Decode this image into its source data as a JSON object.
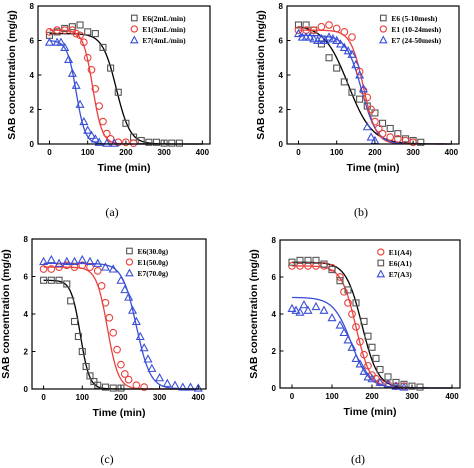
{
  "chart_data": [
    {
      "type": "scatter",
      "panel_label": "(a)",
      "xlabel": "Time  (min)",
      "ylabel": "SAB concentration  (mg/g)",
      "xlim": [
        -30,
        420
      ],
      "ylim": [
        0,
        8
      ],
      "xticks": [
        0,
        100,
        200,
        300,
        400
      ],
      "yticks": [
        0,
        2,
        4,
        6,
        8
      ],
      "legend_position": "top-right",
      "series": [
        {
          "name": "E6(2mL/min)",
          "marker": "square",
          "color": "#555555",
          "points": [
            [
              0,
              6.3
            ],
            [
              20,
              6.5
            ],
            [
              40,
              6.7
            ],
            [
              60,
              6.8
            ],
            [
              80,
              6.9
            ],
            [
              100,
              6.5
            ],
            [
              120,
              6.4
            ],
            [
              140,
              5.6
            ],
            [
              160,
              4.4
            ],
            [
              180,
              3.0
            ],
            [
              200,
              1.2
            ],
            [
              220,
              0.4
            ],
            [
              240,
              0.2
            ],
            [
              260,
              0.1
            ],
            [
              280,
              0.1
            ],
            [
              300,
              0.05
            ],
            [
              320,
              0.05
            ],
            [
              340,
              0.05
            ]
          ],
          "fit": {
            "c0": 6.4,
            "t50": 175,
            "k": 0.055
          }
        },
        {
          "name": "E1(3mL/min)",
          "marker": "circle",
          "color": "#e8413c",
          "points": [
            [
              0,
              6.5
            ],
            [
              20,
              6.6
            ],
            [
              40,
              6.6
            ],
            [
              60,
              6.6
            ],
            [
              70,
              6.4
            ],
            [
              80,
              6.3
            ],
            [
              90,
              5.9
            ],
            [
              100,
              5.0
            ],
            [
              110,
              4.3
            ],
            [
              120,
              3.2
            ],
            [
              130,
              2.2
            ],
            [
              140,
              1.3
            ],
            [
              150,
              0.6
            ],
            [
              160,
              0.3
            ],
            [
              180,
              0.1
            ],
            [
              200,
              0.1
            ],
            [
              220,
              0.05
            ]
          ],
          "fit": {
            "c0": 6.6,
            "t50": 113,
            "k": 0.08
          }
        },
        {
          "name": "E7(4mL/min)",
          "marker": "triangle",
          "color": "#3a4fd8",
          "points": [
            [
              0,
              5.9
            ],
            [
              20,
              5.9
            ],
            [
              30,
              5.9
            ],
            [
              40,
              5.6
            ],
            [
              50,
              4.9
            ],
            [
              60,
              4.1
            ],
            [
              70,
              3.4
            ],
            [
              80,
              2.3
            ],
            [
              90,
              1.3
            ],
            [
              100,
              0.8
            ],
            [
              110,
              0.5
            ],
            [
              120,
              0.3
            ],
            [
              130,
              0.1
            ],
            [
              150,
              0.05
            ],
            [
              170,
              0.05
            ]
          ],
          "fit": {
            "c0": 6.0,
            "t50": 70,
            "k": 0.085
          }
        }
      ]
    },
    {
      "type": "scatter",
      "panel_label": "(b)",
      "xlabel": "Time  (min)",
      "ylabel": "SAB concentration  (mg/g)",
      "xlim": [
        -30,
        420
      ],
      "ylim": [
        0,
        8
      ],
      "xticks": [
        0,
        100,
        200,
        300,
        400
      ],
      "yticks": [
        0,
        2,
        4,
        6,
        8
      ],
      "legend_position": "top-right",
      "series": [
        {
          "name": "E6  (5-10mesh)",
          "marker": "square",
          "color": "#555555",
          "points": [
            [
              0,
              6.9
            ],
            [
              20,
              6.9
            ],
            [
              40,
              6.6
            ],
            [
              60,
              5.8
            ],
            [
              80,
              5.0
            ],
            [
              100,
              4.4
            ],
            [
              120,
              3.6
            ],
            [
              140,
              3.0
            ],
            [
              160,
              2.6
            ],
            [
              180,
              2.2
            ],
            [
              200,
              1.8
            ],
            [
              220,
              1.2
            ],
            [
              240,
              0.9
            ],
            [
              260,
              0.6
            ],
            [
              280,
              0.3
            ],
            [
              300,
              0.2
            ],
            [
              320,
              0.1
            ]
          ],
          "fit": {
            "c0": 6.9,
            "t50": 130,
            "k": 0.032
          }
        },
        {
          "name": "E1  (10-24mesh)",
          "marker": "circle",
          "color": "#e8413c",
          "points": [
            [
              0,
              6.6
            ],
            [
              20,
              6.6
            ],
            [
              40,
              6.6
            ],
            [
              60,
              6.8
            ],
            [
              80,
              6.9
            ],
            [
              100,
              6.7
            ],
            [
              120,
              6.5
            ],
            [
              140,
              6.2
            ],
            [
              160,
              4.2
            ],
            [
              170,
              3.1
            ],
            [
              180,
              2.7
            ],
            [
              190,
              2.0
            ],
            [
              200,
              1.3
            ],
            [
              210,
              0.9
            ],
            [
              220,
              0.6
            ],
            [
              240,
              0.4
            ],
            [
              260,
              0.3
            ],
            [
              280,
              0.2
            ],
            [
              300,
              0.1
            ]
          ],
          "fit": {
            "c0": 6.6,
            "t50": 170,
            "k": 0.06
          }
        },
        {
          "name": "E7  (24-50mesh)",
          "marker": "triangle",
          "color": "#3a4fd8",
          "points": [
            [
              0,
              6.4
            ],
            [
              10,
              6.2
            ],
            [
              20,
              6.2
            ],
            [
              30,
              6.2
            ],
            [
              40,
              6.1
            ],
            [
              50,
              6.0
            ],
            [
              60,
              6.1
            ],
            [
              70,
              6.0
            ],
            [
              80,
              6.2
            ],
            [
              90,
              6.1
            ],
            [
              100,
              6.0
            ],
            [
              110,
              5.8
            ],
            [
              120,
              5.6
            ],
            [
              130,
              5.4
            ],
            [
              140,
              5.2
            ],
            [
              150,
              4.6
            ],
            [
              160,
              4.0
            ],
            [
              170,
              3.2
            ],
            [
              180,
              1.0
            ],
            [
              190,
              0.4
            ],
            [
              200,
              0.2
            ]
          ],
          "fit": {
            "c0": 6.3,
            "t50": 165,
            "k": 0.05
          }
        }
      ]
    },
    {
      "type": "scatter",
      "panel_label": "(c)",
      "xlabel": "Time  (min)",
      "ylabel": "SAB concentration  (mg/g)",
      "xlim": [
        -30,
        420
      ],
      "ylim": [
        0,
        8
      ],
      "xticks": [
        0,
        100,
        200,
        300,
        400
      ],
      "yticks": [
        0,
        2,
        4,
        6,
        8
      ],
      "legend_position": "top-right",
      "series": [
        {
          "name": "E6(30.0g)",
          "marker": "square",
          "color": "#555555",
          "points": [
            [
              0,
              5.8
            ],
            [
              20,
              5.8
            ],
            [
              40,
              5.8
            ],
            [
              60,
              5.6
            ],
            [
              70,
              4.7
            ],
            [
              80,
              3.6
            ],
            [
              90,
              2.8
            ],
            [
              100,
              2.0
            ],
            [
              110,
              1.2
            ],
            [
              120,
              0.7
            ],
            [
              130,
              0.4
            ],
            [
              140,
              0.2
            ],
            [
              160,
              0.1
            ],
            [
              180,
              0.05
            ],
            [
              200,
              0.05
            ]
          ],
          "fit": {
            "c0": 5.8,
            "t50": 95,
            "k": 0.085
          }
        },
        {
          "name": "E1(50.0g)",
          "marker": "circle",
          "color": "#e8413c",
          "points": [
            [
              0,
              6.4
            ],
            [
              20,
              6.4
            ],
            [
              40,
              6.5
            ],
            [
              60,
              6.6
            ],
            [
              80,
              6.5
            ],
            [
              100,
              6.6
            ],
            [
              120,
              6.5
            ],
            [
              140,
              6.3
            ],
            [
              150,
              5.5
            ],
            [
              160,
              4.6
            ],
            [
              170,
              3.8
            ],
            [
              180,
              3.0
            ],
            [
              190,
              2.1
            ],
            [
              200,
              1.3
            ],
            [
              210,
              0.8
            ],
            [
              220,
              0.5
            ],
            [
              240,
              0.2
            ],
            [
              260,
              0.1
            ]
          ],
          "fit": {
            "c0": 6.5,
            "t50": 165,
            "k": 0.07
          }
        },
        {
          "name": "E7(70.0g)",
          "marker": "triangle",
          "color": "#3a4fd8",
          "points": [
            [
              0,
              6.8
            ],
            [
              20,
              6.9
            ],
            [
              40,
              6.7
            ],
            [
              60,
              6.8
            ],
            [
              80,
              6.8
            ],
            [
              100,
              6.9
            ],
            [
              120,
              6.8
            ],
            [
              140,
              6.7
            ],
            [
              160,
              6.5
            ],
            [
              180,
              6.4
            ],
            [
              200,
              5.8
            ],
            [
              210,
              5.3
            ],
            [
              220,
              4.9
            ],
            [
              230,
              4.2
            ],
            [
              240,
              3.6
            ],
            [
              250,
              2.8
            ],
            [
              260,
              2.2
            ],
            [
              270,
              1.6
            ],
            [
              280,
              1.1
            ],
            [
              300,
              0.6
            ],
            [
              320,
              0.3
            ],
            [
              340,
              0.2
            ],
            [
              360,
              0.1
            ],
            [
              380,
              0.1
            ],
            [
              400,
              0.05
            ]
          ],
          "fit": {
            "c0": 6.7,
            "t50": 240,
            "k": 0.055
          }
        }
      ]
    },
    {
      "type": "scatter",
      "panel_label": "(d)",
      "xlabel": "Time  (min)",
      "ylabel": "SAB concentration  (mg/g)",
      "xlim": [
        -30,
        420
      ],
      "ylim": [
        0,
        8
      ],
      "xticks": [
        0,
        100,
        200,
        300,
        400
      ],
      "yticks": [
        0,
        2,
        4,
        6,
        8
      ],
      "legend_position": "top-right",
      "series": [
        {
          "name": "E1(A4)",
          "marker": "circle",
          "color": "#e8413c",
          "points": [
            [
              0,
              6.6
            ],
            [
              20,
              6.6
            ],
            [
              40,
              6.6
            ],
            [
              60,
              6.6
            ],
            [
              80,
              6.6
            ],
            [
              100,
              6.5
            ],
            [
              120,
              6.0
            ],
            [
              130,
              5.2
            ],
            [
              140,
              4.6
            ],
            [
              150,
              4.0
            ],
            [
              160,
              3.3
            ],
            [
              170,
              2.5
            ],
            [
              180,
              1.8
            ],
            [
              190,
              1.2
            ],
            [
              200,
              0.7
            ],
            [
              210,
              0.5
            ],
            [
              220,
              0.3
            ],
            [
              240,
              0.2
            ],
            [
              260,
              0.1
            ],
            [
              280,
              0.1
            ]
          ],
          "fit": {
            "c0": 6.6,
            "t50": 160,
            "k": 0.055
          }
        },
        {
          "name": "E6(A1)",
          "marker": "square",
          "color": "#555555",
          "points": [
            [
              0,
              6.8
            ],
            [
              20,
              6.9
            ],
            [
              40,
              6.9
            ],
            [
              60,
              6.9
            ],
            [
              80,
              6.7
            ],
            [
              100,
              6.4
            ],
            [
              120,
              5.8
            ],
            [
              140,
              5.3
            ],
            [
              160,
              4.6
            ],
            [
              180,
              3.6
            ],
            [
              190,
              2.8
            ],
            [
              200,
              2.2
            ],
            [
              210,
              1.6
            ],
            [
              220,
              1.0
            ],
            [
              240,
              0.6
            ],
            [
              260,
              0.3
            ],
            [
              280,
              0.2
            ],
            [
              300,
              0.1
            ],
            [
              320,
              0.05
            ]
          ],
          "fit": {
            "c0": 6.8,
            "t50": 175,
            "k": 0.05
          }
        },
        {
          "name": "E7(A3)",
          "marker": "triangle",
          "color": "#3a4fd8",
          "points": [
            [
              0,
              4.3
            ],
            [
              10,
              4.2
            ],
            [
              20,
              4.1
            ],
            [
              30,
              4.5
            ],
            [
              40,
              4.2
            ],
            [
              60,
              4.4
            ],
            [
              80,
              4.2
            ],
            [
              100,
              3.8
            ],
            [
              120,
              3.4
            ],
            [
              130,
              3.0
            ],
            [
              140,
              2.6
            ],
            [
              150,
              2.2
            ],
            [
              160,
              1.6
            ],
            [
              170,
              1.3
            ],
            [
              180,
              0.9
            ],
            [
              190,
              0.6
            ],
            [
              200,
              0.5
            ],
            [
              220,
              0.3
            ],
            [
              240,
              0.2
            ],
            [
              260,
              0.1
            ],
            [
              280,
              0.05
            ]
          ],
          "fit": {
            "c0": 4.9,
            "t50": 148,
            "k": 0.045
          }
        }
      ]
    }
  ]
}
